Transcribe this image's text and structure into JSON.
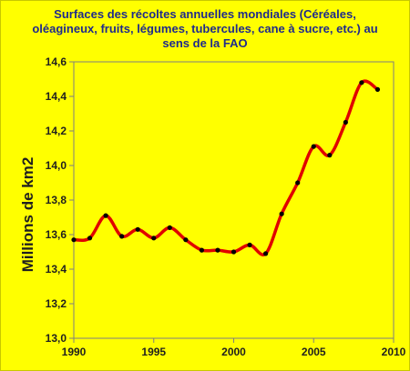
{
  "chart_data": {
    "type": "line",
    "title": [
      "Surfaces des récoltes annuelles mondiales  (Céréales,",
      "oléagineux, fruits, légumes, tubercules, cane à sucre, etc.) au",
      "sens de la FAO"
    ],
    "xlabel": "",
    "ylabel": "Millions de km2",
    "xlim": [
      1990,
      2010
    ],
    "ylim": [
      13.0,
      14.6
    ],
    "x_ticks": [
      "1990",
      "1995",
      "2000",
      "2005",
      "2010"
    ],
    "y_ticks": [
      "13,0",
      "13,2",
      "13,4",
      "13,6",
      "13,8",
      "14,0",
      "14,2",
      "14,4",
      "14,6"
    ],
    "grid": false,
    "series": [
      {
        "color": "#e00000",
        "marker_color": "#000000",
        "x": [
          1990,
          1991,
          1992,
          1993,
          1994,
          1995,
          1996,
          1997,
          1998,
          1999,
          2000,
          2001,
          2002,
          2003,
          2004,
          2005,
          2006,
          2007,
          2008,
          2009
        ],
        "y": [
          13.57,
          13.58,
          13.71,
          13.59,
          13.63,
          13.58,
          13.64,
          13.57,
          13.51,
          13.51,
          13.5,
          13.54,
          13.49,
          13.72,
          13.9,
          14.11,
          14.06,
          14.25,
          14.48,
          14.44
        ]
      }
    ]
  }
}
